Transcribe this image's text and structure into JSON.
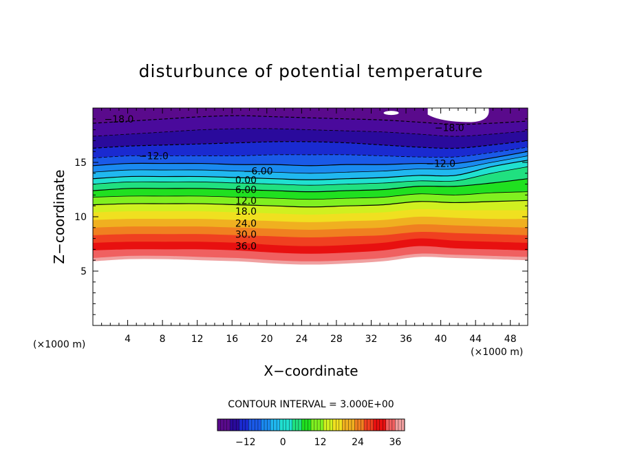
{
  "chart_data": {
    "type": "contour",
    "title": "disturbunce of potential temperature",
    "xlabel": "X−coordinate",
    "ylabel": "Z−coordinate",
    "x_unit_label_left": "(×1000 m)",
    "x_unit_label_right": "(×1000 m)",
    "xlim": [
      0,
      50
    ],
    "ylim": [
      0,
      20
    ],
    "x_ticks": [
      4,
      8,
      12,
      16,
      20,
      24,
      28,
      32,
      36,
      40,
      44,
      48
    ],
    "y_ticks": [
      5,
      10,
      15
    ],
    "contour_interval_text": "CONTOUR INTERVAL = 3.000E+00",
    "colorbar": {
      "min": -21,
      "max": 39,
      "ticks": [
        -12,
        0,
        12,
        24,
        36
      ],
      "tick_labels": [
        "−12",
        "0",
        "12",
        "24",
        "36"
      ],
      "colors": [
        "#5a0a8c",
        "#2a0a9c",
        "#1a2ad0",
        "#1a5ae8",
        "#1a8af0",
        "#20b8f0",
        "#20e0d0",
        "#20e080",
        "#20e020",
        "#80f020",
        "#d0f020",
        "#f0e020",
        "#f0b020",
        "#f08020",
        "#f04020",
        "#e81010",
        "#f06060",
        "#f0a0a0"
      ]
    },
    "contour_labels": [
      {
        "text": "−18.0",
        "x": 3.0,
        "z": 19.0
      },
      {
        "text": "−18.0",
        "x": 41.0,
        "z": 18.2
      },
      {
        "text": "−12.0",
        "x": 7.0,
        "z": 15.6
      },
      {
        "text": "−12.0",
        "x": 40.0,
        "z": 14.9
      },
      {
        "text": "−6.00",
        "x": 19.0,
        "z": 14.2
      },
      {
        "text": "0.00",
        "x": 17.6,
        "z": 13.4
      },
      {
        "text": "6.00",
        "x": 17.6,
        "z": 12.5
      },
      {
        "text": "12.0",
        "x": 17.6,
        "z": 11.5
      },
      {
        "text": "18.0",
        "x": 17.6,
        "z": 10.5
      },
      {
        "text": "24.0",
        "x": 17.6,
        "z": 9.4
      },
      {
        "text": "30.0",
        "x": 17.6,
        "z": 8.4
      },
      {
        "text": "36.0",
        "x": 17.6,
        "z": 7.3
      }
    ],
    "bands": [
      {
        "value": 39,
        "upper": [
          6.2,
          6.4,
          6.4,
          6.3,
          6.2,
          6.0,
          5.9,
          6.0,
          6.2,
          6.6,
          6.5,
          6.4,
          6.3
        ],
        "color": "#f0a0a0"
      },
      {
        "value": 36,
        "upper": [
          6.9,
          7.0,
          7.0,
          7.0,
          6.9,
          6.7,
          6.6,
          6.7,
          6.9,
          7.3,
          7.1,
          7.0,
          6.9
        ],
        "color": "#f06060"
      },
      {
        "value": 33,
        "upper": [
          7.6,
          7.7,
          7.7,
          7.7,
          7.6,
          7.4,
          7.3,
          7.4,
          7.6,
          8.0,
          7.8,
          7.7,
          7.6
        ],
        "color": "#e81010"
      },
      {
        "value": 30,
        "upper": [
          8.3,
          8.4,
          8.4,
          8.4,
          8.3,
          8.2,
          8.1,
          8.2,
          8.3,
          8.6,
          8.5,
          8.4,
          8.3
        ],
        "color": "#f04020"
      },
      {
        "value": 27,
        "upper": [
          9.0,
          9.1,
          9.1,
          9.1,
          9.0,
          8.9,
          8.8,
          8.9,
          9.0,
          9.3,
          9.2,
          9.1,
          9.0
        ],
        "color": "#f08020"
      },
      {
        "value": 24,
        "upper": [
          9.7,
          9.8,
          9.8,
          9.8,
          9.7,
          9.6,
          9.5,
          9.6,
          9.7,
          10.0,
          9.9,
          9.8,
          9.8
        ],
        "color": "#f0b020"
      },
      {
        "value": 21,
        "upper": [
          10.4,
          10.5,
          10.5,
          10.5,
          10.4,
          10.3,
          10.2,
          10.3,
          10.4,
          10.7,
          10.6,
          10.6,
          10.6
        ],
        "color": "#f0e020"
      },
      {
        "value": 18,
        "upper": [
          11.1,
          11.2,
          11.2,
          11.2,
          11.1,
          11.0,
          10.9,
          11.0,
          11.1,
          11.4,
          11.3,
          11.4,
          11.5
        ],
        "color": "#d0f020"
      },
      {
        "value": 15,
        "upper": [
          11.8,
          11.9,
          11.9,
          11.9,
          11.8,
          11.7,
          11.6,
          11.7,
          11.8,
          12.1,
          12.0,
          12.2,
          12.3
        ],
        "color": "#80f020"
      },
      {
        "value": 12,
        "upper": [
          12.4,
          12.6,
          12.6,
          12.6,
          12.5,
          12.4,
          12.3,
          12.4,
          12.5,
          12.8,
          12.8,
          13.1,
          13.5
        ],
        "color": "#20e020"
      },
      {
        "value": 9,
        "upper": [
          13.0,
          13.2,
          13.2,
          13.2,
          13.1,
          13.0,
          12.9,
          13.0,
          13.1,
          13.3,
          13.3,
          14.0,
          14.6
        ],
        "color": "#20e080"
      },
      {
        "value": 6,
        "upper": [
          13.5,
          13.7,
          13.7,
          13.7,
          13.6,
          13.5,
          13.4,
          13.5,
          13.6,
          13.8,
          13.8,
          14.6,
          15.2
        ],
        "color": "#20e0d0"
      },
      {
        "value": 3,
        "upper": [
          14.1,
          14.3,
          14.3,
          14.3,
          14.2,
          14.1,
          14.0,
          14.1,
          14.2,
          14.4,
          14.4,
          15.0,
          15.6
        ],
        "color": "#20b8f0"
      },
      {
        "value": 0,
        "upper": [
          14.7,
          14.9,
          14.9,
          14.9,
          14.8,
          14.8,
          14.7,
          14.8,
          14.8,
          14.9,
          14.9,
          15.4,
          16.0
        ],
        "color": "#1a8af0"
      },
      {
        "value": -3,
        "upper": [
          15.4,
          15.6,
          15.6,
          15.6,
          15.6,
          15.7,
          15.7,
          15.7,
          15.6,
          15.5,
          15.5,
          15.9,
          16.4
        ],
        "color": "#1a5ae8"
      },
      {
        "value": -6,
        "upper": [
          16.3,
          16.5,
          16.6,
          16.7,
          16.8,
          16.9,
          16.9,
          16.8,
          16.6,
          16.4,
          16.3,
          16.6,
          17.0
        ],
        "color": "#1a2ad0"
      },
      {
        "value": -9,
        "upper": [
          17.4,
          17.6,
          17.8,
          18.0,
          18.1,
          18.1,
          18.0,
          17.9,
          17.8,
          17.6,
          17.4,
          17.6,
          17.9
        ],
        "color": "#2a0a9c"
      },
      {
        "value": -12,
        "upper": [
          18.6,
          18.8,
          19.0,
          19.2,
          19.3,
          19.2,
          19.1,
          19.0,
          18.9,
          18.7,
          18.5,
          18.6,
          18.8
        ],
        "color": "#4a0a9c"
      },
      {
        "value": -15,
        "upper": [
          20.0,
          20.0,
          20.0,
          20.0,
          20.0,
          20.0,
          20.0,
          20.0,
          20.0,
          20.0,
          20.0,
          20.0,
          20.0
        ],
        "color": "#5a0a8c"
      }
    ]
  }
}
